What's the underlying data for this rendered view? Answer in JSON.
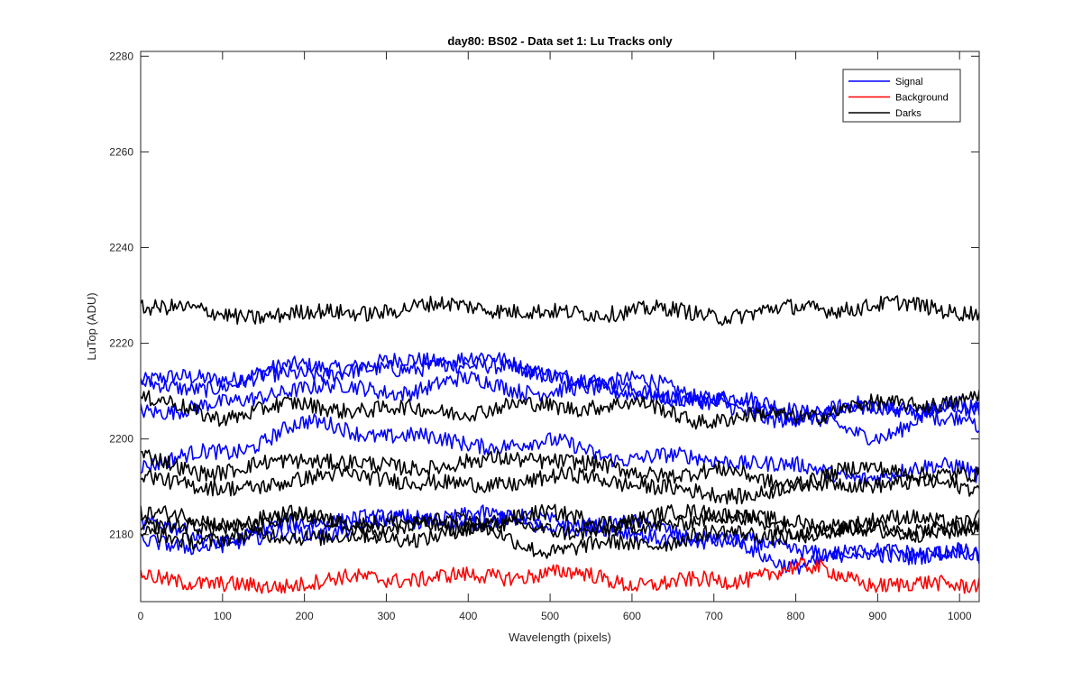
{
  "chart_data": {
    "type": "line",
    "title": "day80: BS02 - Data set 1: Lu Tracks only",
    "xlabel": "Wavelength (pixels)",
    "ylabel": "LuTop (ADU)",
    "xlim": [
      0,
      1024
    ],
    "ylim": [
      2166,
      2281
    ],
    "xticks": [
      0,
      100,
      200,
      300,
      400,
      500,
      600,
      700,
      800,
      900,
      1000
    ],
    "yticks": [
      2180,
      2200,
      2220,
      2240,
      2260,
      2280
    ],
    "grid": false,
    "legend_position": "top-right",
    "legend": [
      {
        "label": "Signal",
        "color": "#0000ff"
      },
      {
        "label": "Background",
        "color": "#ff0000"
      },
      {
        "label": "Darks",
        "color": "#000000"
      }
    ],
    "x_knots": [
      0,
      100,
      200,
      300,
      400,
      500,
      600,
      700,
      800,
      900,
      1000,
      1024
    ],
    "noise_amplitude": 1.2,
    "series": [
      {
        "group": "Signal",
        "color": "#0000ff",
        "y": [
          2212,
          2213,
          2215,
          2216,
          2216,
          2213,
          2212,
          2209,
          2206,
          2206,
          2205,
          2206
        ]
      },
      {
        "group": "Signal",
        "color": "#0000ff",
        "y": [
          2211,
          2211,
          2214,
          2214,
          2217,
          2214,
          2210,
          2208,
          2205,
          2207,
          2206,
          2206
        ]
      },
      {
        "group": "Signal",
        "color": "#0000ff",
        "y": [
          2206,
          2207,
          2211,
          2210,
          2212,
          2210,
          2210,
          2207,
          2204,
          2201,
          2207,
          2203
        ]
      },
      {
        "group": "Signal",
        "color": "#0000ff",
        "y": [
          2195,
          2197,
          2203,
          2201,
          2199,
          2199,
          2196,
          2196,
          2194,
          2192,
          2195,
          2193
        ]
      },
      {
        "group": "Signal",
        "color": "#0000ff",
        "y": [
          2182,
          2179,
          2180,
          2183,
          2183,
          2183,
          2182,
          2179,
          2177,
          2176,
          2177,
          2175
        ]
      },
      {
        "group": "Signal",
        "color": "#0000ff",
        "y": [
          2178,
          2178,
          2183,
          2183,
          2184,
          2182,
          2180,
          2179,
          2174,
          2176,
          2176,
          2175
        ]
      },
      {
        "group": "Background",
        "color": "#ff0000",
        "y": [
          2172,
          2169,
          2170,
          2171,
          2171,
          2172,
          2170,
          2170,
          2173,
          2170,
          2169,
          2170
        ]
      },
      {
        "group": "Darks",
        "color": "#000000",
        "y": [
          2228,
          2226,
          2226,
          2227,
          2228,
          2226,
          2227,
          2226,
          2227,
          2228,
          2227,
          2227
        ]
      },
      {
        "group": "Darks",
        "color": "#000000",
        "y": [
          2208,
          2205,
          2207,
          2206,
          2206,
          2207,
          2207,
          2204,
          2205,
          2207,
          2208,
          2209
        ]
      },
      {
        "group": "Darks",
        "color": "#000000",
        "y": [
          2196,
          2193,
          2196,
          2194,
          2195,
          2196,
          2193,
          2193,
          2191,
          2194,
          2192,
          2192
        ]
      },
      {
        "group": "Darks",
        "color": "#000000",
        "y": [
          2193,
          2189,
          2192,
          2192,
          2190,
          2192,
          2191,
          2188,
          2190,
          2191,
          2190,
          2190
        ]
      },
      {
        "group": "Darks",
        "color": "#000000",
        "y": [
          2185,
          2182,
          2183,
          2181,
          2183,
          2184,
          2183,
          2185,
          2182,
          2183,
          2183,
          2184
        ]
      },
      {
        "group": "Darks",
        "color": "#000000",
        "y": [
          2181,
          2182,
          2184,
          2182,
          2182,
          2181,
          2181,
          2184,
          2181,
          2181,
          2182,
          2181
        ]
      },
      {
        "group": "Darks",
        "color": "#000000",
        "y": [
          2180,
          2179,
          2180,
          2179,
          2181,
          2177,
          2178,
          2180,
          2180,
          2181,
          2180,
          2182
        ]
      }
    ]
  }
}
